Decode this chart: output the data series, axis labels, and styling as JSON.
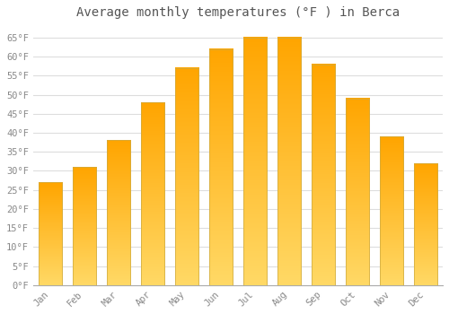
{
  "title": "Average monthly temperatures (°F ) in Berca",
  "months": [
    "Jan",
    "Feb",
    "Mar",
    "Apr",
    "May",
    "Jun",
    "Jul",
    "Aug",
    "Sep",
    "Oct",
    "Nov",
    "Dec"
  ],
  "values": [
    27,
    31,
    38,
    48,
    57,
    62,
    65,
    65,
    58,
    49,
    39,
    32
  ],
  "bar_color_top": "#FFA500",
  "bar_color_bottom": "#FFD966",
  "bar_edge_color": "#ccaa44",
  "ylim": [
    0,
    68
  ],
  "yticks": [
    0,
    5,
    10,
    15,
    20,
    25,
    30,
    35,
    40,
    45,
    50,
    55,
    60,
    65
  ],
  "ytick_labels": [
    "0°F",
    "5°F",
    "10°F",
    "15°F",
    "20°F",
    "25°F",
    "30°F",
    "35°F",
    "40°F",
    "45°F",
    "50°F",
    "55°F",
    "60°F",
    "65°F"
  ],
  "background_color": "#ffffff",
  "grid_color": "#dddddd",
  "title_fontsize": 10,
  "tick_fontsize": 7.5,
  "font_family": "monospace"
}
